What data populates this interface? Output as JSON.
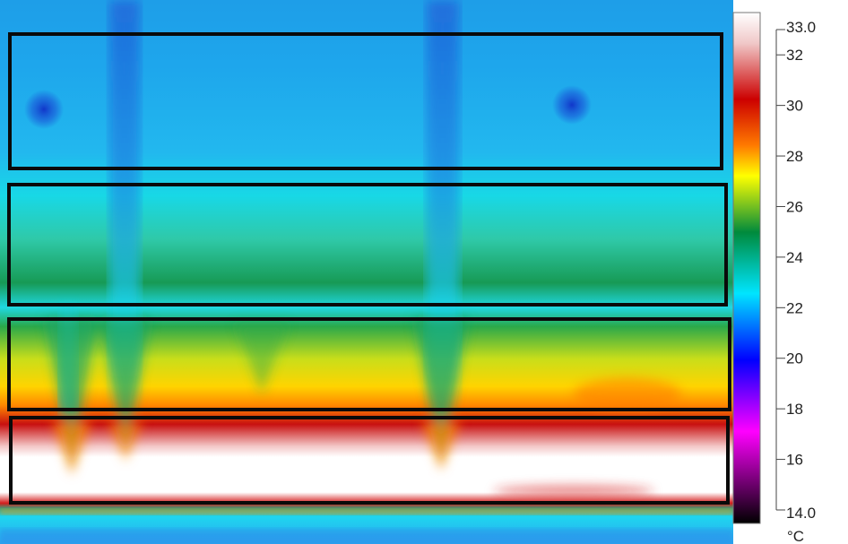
{
  "thermal_image": {
    "palette": [
      "#000000",
      "#ff00ff",
      "#0000ff",
      "#00e5ff",
      "#008a3c",
      "#ffff00",
      "#ff7a00",
      "#c40000",
      "#ffffff"
    ],
    "scale": {
      "min": 14.0,
      "max": 33.0,
      "min_label": "14.0",
      "max_label": "33.0",
      "unit": "°C",
      "tick_labels": [
        "32",
        "30",
        "28",
        "26",
        "24",
        "22",
        "20",
        "18",
        "16"
      ]
    },
    "regions": [
      {
        "name": "band-1",
        "kind": "rectangle"
      },
      {
        "name": "band-2",
        "kind": "rectangle"
      },
      {
        "name": "band-3",
        "kind": "rectangle"
      },
      {
        "name": "band-4",
        "kind": "rectangle"
      }
    ]
  }
}
